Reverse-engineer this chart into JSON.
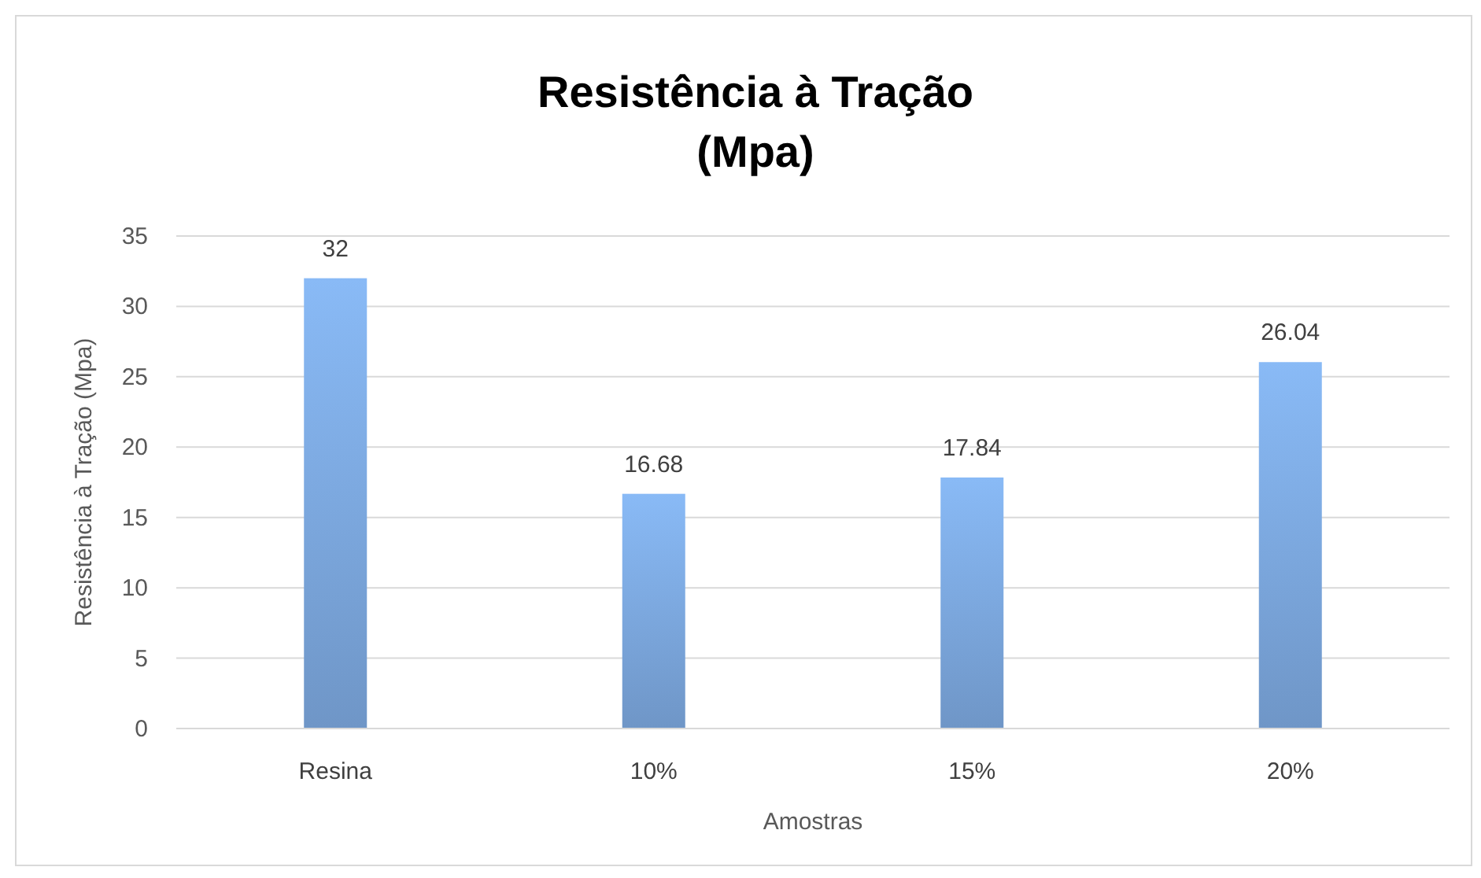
{
  "chart_data": {
    "type": "bar",
    "title": "Resistência à Tração\n(Mpa)",
    "xlabel": "Amostras",
    "ylabel": "Resistência à Tração (Mpa)",
    "categories": [
      "Resina",
      "10%",
      "15%",
      "20%"
    ],
    "values": [
      32,
      16.68,
      17.84,
      26.04
    ],
    "color": "#7ba7dd",
    "ylim": [
      0,
      35
    ],
    "yticks": [
      0,
      5,
      10,
      15,
      20,
      25,
      30,
      35
    ],
    "grid": "y",
    "data_labels": true
  }
}
